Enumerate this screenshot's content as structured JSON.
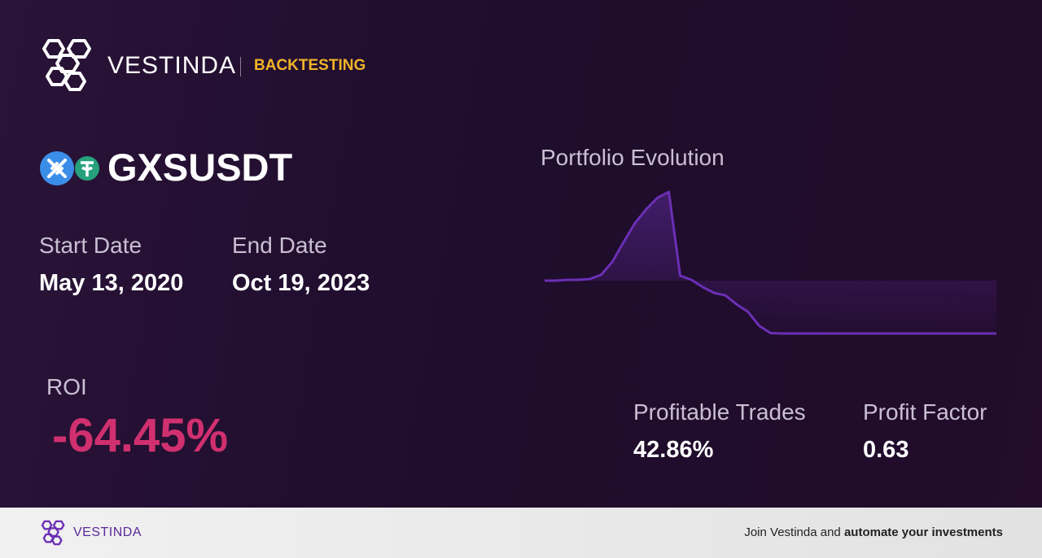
{
  "header": {
    "brand": "VESTINDA",
    "section": "BACKTESTING"
  },
  "asset": {
    "symbol": "GXSUSDT"
  },
  "dates": {
    "start_label": "Start Date",
    "start": "May 13, 2020",
    "end_label": "End Date",
    "end": "Oct 19, 2023"
  },
  "chart_data": {
    "type": "line",
    "title": "Portfolio Evolution",
    "color": "#6b2fb5",
    "values": [
      100,
      100,
      101,
      101,
      102,
      107,
      123,
      147,
      170,
      187,
      201,
      208,
      106,
      101,
      92,
      85,
      82,
      71,
      62,
      45,
      36,
      35.55,
      35.55,
      35.55,
      35.55,
      35.55,
      35.55,
      35.55,
      35.55,
      35.55,
      35.55,
      35.55,
      35.55,
      35.55,
      35.55,
      35.55,
      35.55,
      35.55,
      35.55,
      35.55,
      35.55
    ]
  },
  "roi": {
    "label": "ROI",
    "value": "-64.45%"
  },
  "stats": {
    "profitable_label": "Profitable Trades",
    "profitable": "42.86%",
    "factor_label": "Profit Factor",
    "factor": "0.63"
  },
  "footer": {
    "brand": "VESTINDA",
    "text": "Join Vestinda and",
    "bold": "automate your investments"
  }
}
